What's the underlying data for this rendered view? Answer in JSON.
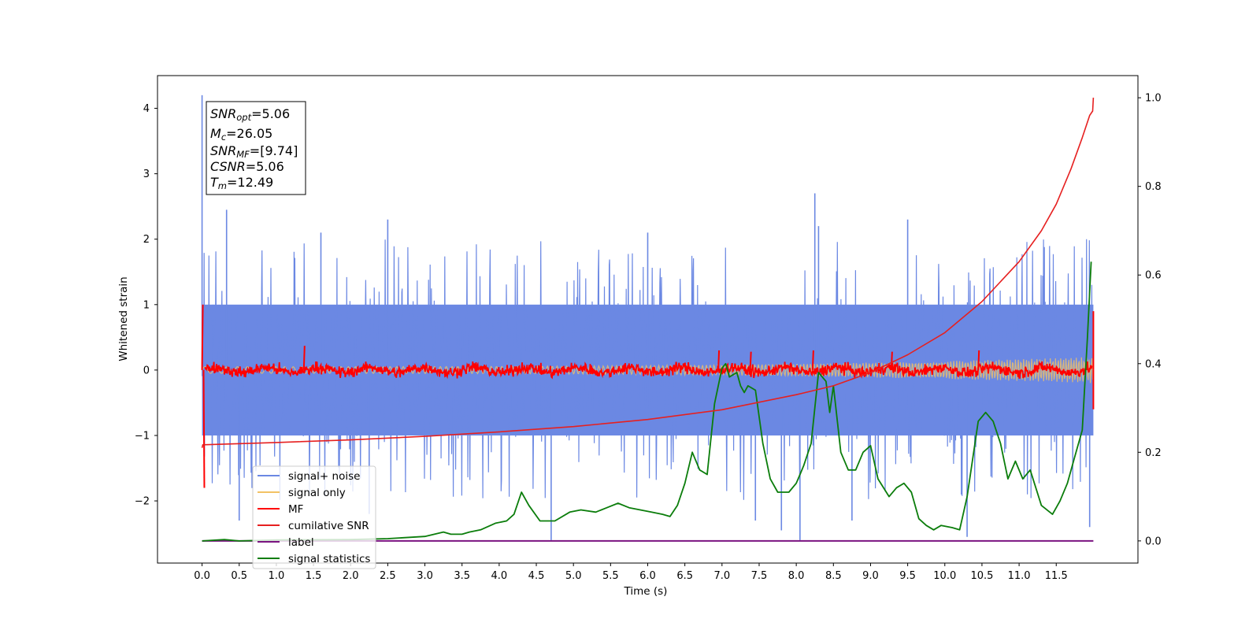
{
  "chart_data": {
    "type": "line",
    "title": "",
    "xlabel": "Time (s)",
    "ylabel": "Whitened strain",
    "xlim": [
      -0.6,
      12.6
    ],
    "ylim": [
      -2.95,
      4.5
    ],
    "y2lim": [
      -0.05,
      1.05
    ],
    "x_ticks": [
      0.0,
      0.5,
      1.0,
      1.5,
      2.0,
      2.5,
      3.0,
      3.5,
      4.0,
      4.5,
      5.0,
      5.5,
      6.0,
      6.5,
      7.0,
      7.5,
      8.0,
      8.5,
      9.0,
      9.5,
      10.0,
      10.5,
      11.0,
      11.5
    ],
    "x_tick_labels": [
      "0.0",
      "0.5",
      "1.0",
      "1.5",
      "2.0",
      "2.5",
      "3.0",
      "3.5",
      "4.0",
      "4.5",
      "5.0",
      "5.5",
      "6.0",
      "6.5",
      "7.0",
      "7.5",
      "8.0",
      "8.5",
      "9.0",
      "9.5",
      "10.0",
      "10.5",
      "11.0",
      "11.5"
    ],
    "y_ticks": [
      -2,
      -1,
      0,
      1,
      2,
      3,
      4
    ],
    "y_tick_labels": [
      "−2",
      "−1",
      "0",
      "1",
      "2",
      "3",
      "4"
    ],
    "y2_ticks": [
      0.0,
      0.2,
      0.4,
      0.6,
      0.8,
      1.0
    ],
    "y2_tick_labels": [
      "0.0",
      "0.2",
      "0.4",
      "0.6",
      "0.8",
      "1.0"
    ],
    "legend_location": "bottom-left",
    "annotation_box": {
      "snr_opt": {
        "label": "SNR",
        "sub": "opt",
        "value": "=5.06"
      },
      "mc": {
        "label": "M",
        "sub": "c",
        "value": "=26.05"
      },
      "snr_mf": {
        "label": "SNR",
        "sub": "MF",
        "value": "=[9.74]"
      },
      "csnr": {
        "label": "CSNR",
        "value": "=5.06"
      },
      "tm": {
        "label": "T",
        "sub": "m",
        "value": "=12.49"
      }
    },
    "series": [
      {
        "name": "signal+ noise",
        "axis": "left",
        "color": "#6b88e3",
        "kind": "noise-band",
        "t_range": [
          0.0,
          12.0
        ],
        "band_low": -1.0,
        "band_high": 1.0,
        "spikes": [
          [
            0.0,
            4.2
          ],
          [
            0.05,
            -0.3
          ],
          [
            0.33,
            2.45
          ],
          [
            0.5,
            -2.3
          ],
          [
            1.6,
            2.1
          ],
          [
            2.25,
            -2.2
          ],
          [
            2.5,
            2.3
          ],
          [
            4.7,
            -2.6
          ],
          [
            6.0,
            2.1
          ],
          [
            7.45,
            -2.3
          ],
          [
            7.8,
            -2.45
          ],
          [
            8.05,
            -2.6
          ],
          [
            8.25,
            2.7
          ],
          [
            8.3,
            2.2
          ],
          [
            8.75,
            -2.3
          ],
          [
            9.5,
            2.3
          ],
          [
            10.3,
            -2.55
          ],
          [
            11.95,
            -2.4
          ]
        ]
      },
      {
        "name": "signal only",
        "axis": "left",
        "color": "#f2c265",
        "kind": "chirp",
        "t_range": [
          0.0,
          12.0
        ],
        "amplitude_start": 0.05,
        "amplitude_end": 0.2
      },
      {
        "name": "MF",
        "axis": "left",
        "color": "#ff0000",
        "kind": "mf-trace",
        "t_range": [
          0.0,
          12.0
        ],
        "mean": 0.0,
        "peaks": [
          [
            0.0,
            1.0
          ],
          [
            0.02,
            -1.8
          ],
          [
            1.37,
            0.37
          ],
          [
            6.95,
            0.3
          ],
          [
            7.38,
            0.28
          ],
          [
            8.22,
            0.3
          ],
          [
            9.28,
            0.28
          ],
          [
            10.45,
            0.3
          ],
          [
            12.0,
            0.9
          ],
          [
            12.0,
            -0.6
          ]
        ]
      },
      {
        "name": "cumilative SNR",
        "axis": "right",
        "color": "#e62020",
        "x": [
          0.0,
          0.01,
          1.0,
          2.0,
          3.0,
          4.0,
          5.0,
          6.0,
          7.0,
          8.0,
          8.5,
          9.0,
          9.5,
          10.0,
          10.5,
          11.0,
          11.3,
          11.5,
          11.7,
          11.85,
          11.95,
          11.99,
          12.0
        ],
        "values": [
          0.21,
          0.217,
          0.222,
          0.228,
          0.236,
          0.246,
          0.258,
          0.274,
          0.296,
          0.33,
          0.35,
          0.38,
          0.42,
          0.47,
          0.54,
          0.63,
          0.7,
          0.76,
          0.84,
          0.91,
          0.96,
          0.97,
          1.0
        ]
      },
      {
        "name": "label",
        "axis": "right",
        "color": "#7a1380",
        "x": [
          0.0,
          12.0
        ],
        "values": [
          0.0,
          0.0
        ]
      },
      {
        "name": "signal statistics",
        "axis": "right",
        "color": "#0b7d0b",
        "x": [
          0.0,
          0.3,
          0.5,
          1.0,
          2.0,
          2.5,
          3.0,
          3.25,
          3.35,
          3.5,
          3.6,
          3.75,
          3.95,
          4.1,
          4.2,
          4.3,
          4.4,
          4.55,
          4.75,
          4.95,
          5.1,
          5.3,
          5.45,
          5.6,
          5.75,
          5.9,
          6.05,
          6.2,
          6.3,
          6.4,
          6.5,
          6.6,
          6.7,
          6.8,
          6.9,
          7.0,
          7.05,
          7.1,
          7.2,
          7.25,
          7.3,
          7.35,
          7.45,
          7.55,
          7.65,
          7.75,
          7.9,
          8.0,
          8.05,
          8.1,
          8.2,
          8.25,
          8.3,
          8.4,
          8.45,
          8.5,
          8.6,
          8.7,
          8.8,
          8.9,
          9.0,
          9.1,
          9.25,
          9.35,
          9.45,
          9.55,
          9.65,
          9.75,
          9.85,
          9.95,
          10.1,
          10.2,
          10.3,
          10.45,
          10.55,
          10.65,
          10.75,
          10.85,
          10.95,
          11.05,
          11.15,
          11.3,
          11.45,
          11.55,
          11.65,
          11.75,
          11.85,
          11.92,
          11.97
        ],
        "values": [
          0.0,
          0.003,
          0.0,
          0.002,
          0.003,
          0.005,
          0.01,
          0.02,
          0.015,
          0.015,
          0.02,
          0.025,
          0.04,
          0.045,
          0.06,
          0.11,
          0.08,
          0.045,
          0.045,
          0.065,
          0.07,
          0.065,
          0.075,
          0.085,
          0.075,
          0.07,
          0.065,
          0.06,
          0.055,
          0.08,
          0.13,
          0.2,
          0.16,
          0.15,
          0.31,
          0.39,
          0.4,
          0.37,
          0.38,
          0.35,
          0.335,
          0.35,
          0.34,
          0.22,
          0.14,
          0.11,
          0.11,
          0.13,
          0.15,
          0.17,
          0.22,
          0.3,
          0.38,
          0.36,
          0.29,
          0.35,
          0.2,
          0.16,
          0.16,
          0.2,
          0.215,
          0.14,
          0.1,
          0.12,
          0.13,
          0.11,
          0.05,
          0.035,
          0.025,
          0.035,
          0.03,
          0.025,
          0.1,
          0.27,
          0.29,
          0.27,
          0.22,
          0.14,
          0.18,
          0.14,
          0.16,
          0.08,
          0.06,
          0.09,
          0.13,
          0.19,
          0.25,
          0.46,
          0.63
        ]
      }
    ]
  }
}
